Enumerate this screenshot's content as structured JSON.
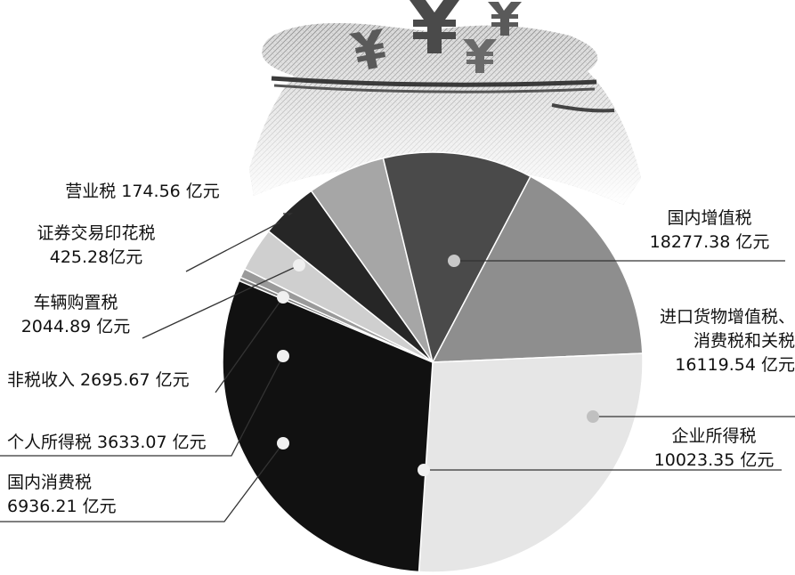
{
  "chart_data": {
    "type": "pie",
    "unit": "亿元",
    "slices": [
      {
        "name": "营业税",
        "value": 174.56,
        "label_lines": [
          "营业税 174.56 亿元"
        ],
        "color": "#7a7a7a"
      },
      {
        "name": "证券交易印花税",
        "value": 425.28,
        "label_lines": [
          "证券交易印花税",
          "425.28亿元"
        ],
        "color": "#9a9a9a"
      },
      {
        "name": "车辆购置税",
        "value": 2044.89,
        "label_lines": [
          "车辆购置税",
          "2044.89 亿元"
        ],
        "color": "#cfcfcf"
      },
      {
        "name": "非税收入",
        "value": 2695.67,
        "label_lines": [
          "非税收入 2695.67 亿元"
        ],
        "color": "#262626"
      },
      {
        "name": "个人所得税",
        "value": 3633.07,
        "label_lines": [
          "个人所得税 3633.07 亿元"
        ],
        "color": "#a6a6a6"
      },
      {
        "name": "国内消费税",
        "value": 6936.21,
        "label_lines": [
          "国内消费税",
          "6936.21 亿元"
        ],
        "color": "#4a4a4a"
      },
      {
        "name": "企业所得税",
        "value": 10023.35,
        "label_lines": [
          "企业所得税",
          "10023.35 亿元"
        ],
        "color": "#8e8e8e"
      },
      {
        "name": "进口货物增值税、消费税和关税",
        "value": 16119.54,
        "label_lines": [
          "进口货物增值税、",
          "消费税和关税",
          "16119.54 亿元"
        ],
        "color": "#e6e6e6"
      },
      {
        "name": "国内增值税",
        "value": 18277.38,
        "label_lines": [
          "国内增值税",
          "18277.38 亿元"
        ],
        "color": "#111111"
      }
    ]
  }
}
